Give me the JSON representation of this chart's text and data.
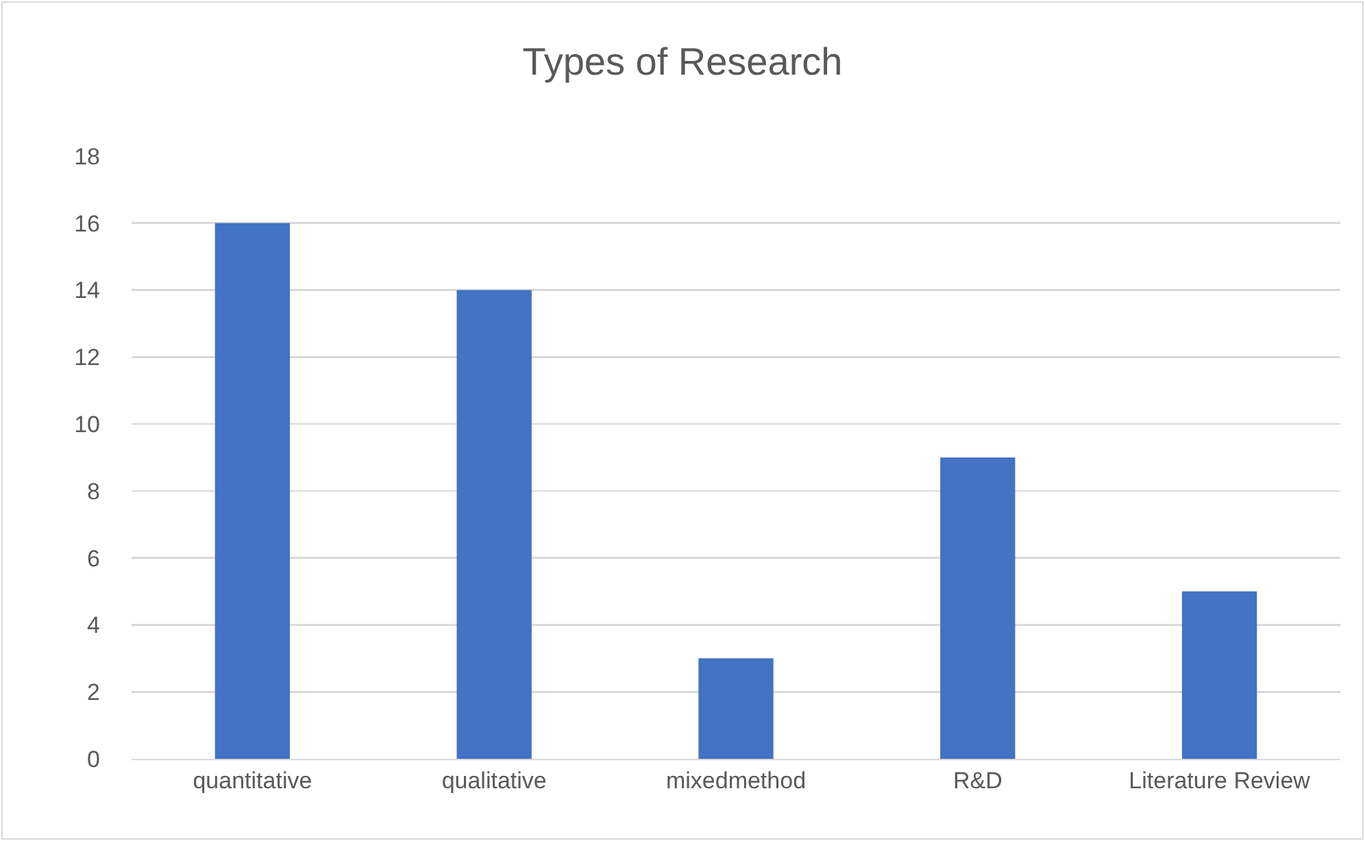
{
  "chart_data": {
    "type": "bar",
    "title": "Types of Research",
    "categories": [
      "quantitative",
      "qualitative",
      "mixedmethod",
      "R&D",
      "Literature Review"
    ],
    "values": [
      16,
      14,
      3,
      9,
      5
    ],
    "color": "#4472c4",
    "ylim": [
      0,
      18
    ],
    "yticks": [
      0,
      2,
      4,
      6,
      8,
      10,
      12,
      14,
      16,
      18
    ],
    "grid": "y"
  }
}
